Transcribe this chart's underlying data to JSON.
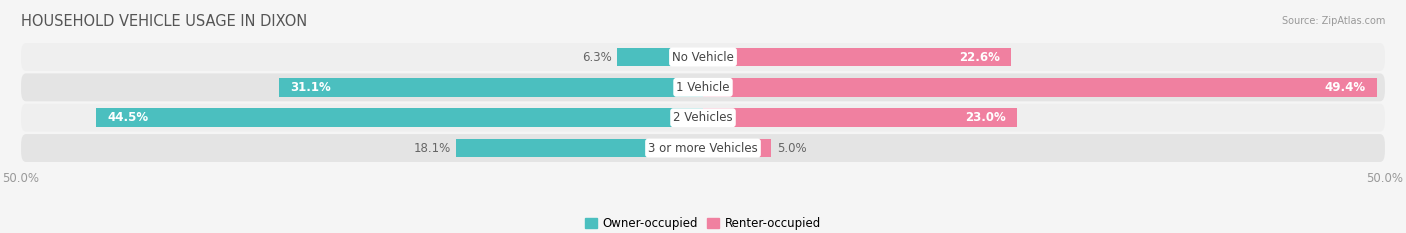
{
  "title": "HOUSEHOLD VEHICLE USAGE IN DIXON",
  "source": "Source: ZipAtlas.com",
  "categories": [
    "No Vehicle",
    "1 Vehicle",
    "2 Vehicles",
    "3 or more Vehicles"
  ],
  "owner_values": [
    6.3,
    31.1,
    44.5,
    18.1
  ],
  "renter_values": [
    22.6,
    49.4,
    23.0,
    5.0
  ],
  "owner_color": "#4BBFBF",
  "renter_color": "#F080A0",
  "axis_max": 50.0,
  "bar_height": 0.62,
  "row_bg_even": "#efefef",
  "row_bg_odd": "#e4e4e4",
  "fig_bg": "#f5f5f5",
  "title_fontsize": 10.5,
  "tick_fontsize": 8.5,
  "label_fontsize": 8.5,
  "category_fontsize": 8.5
}
